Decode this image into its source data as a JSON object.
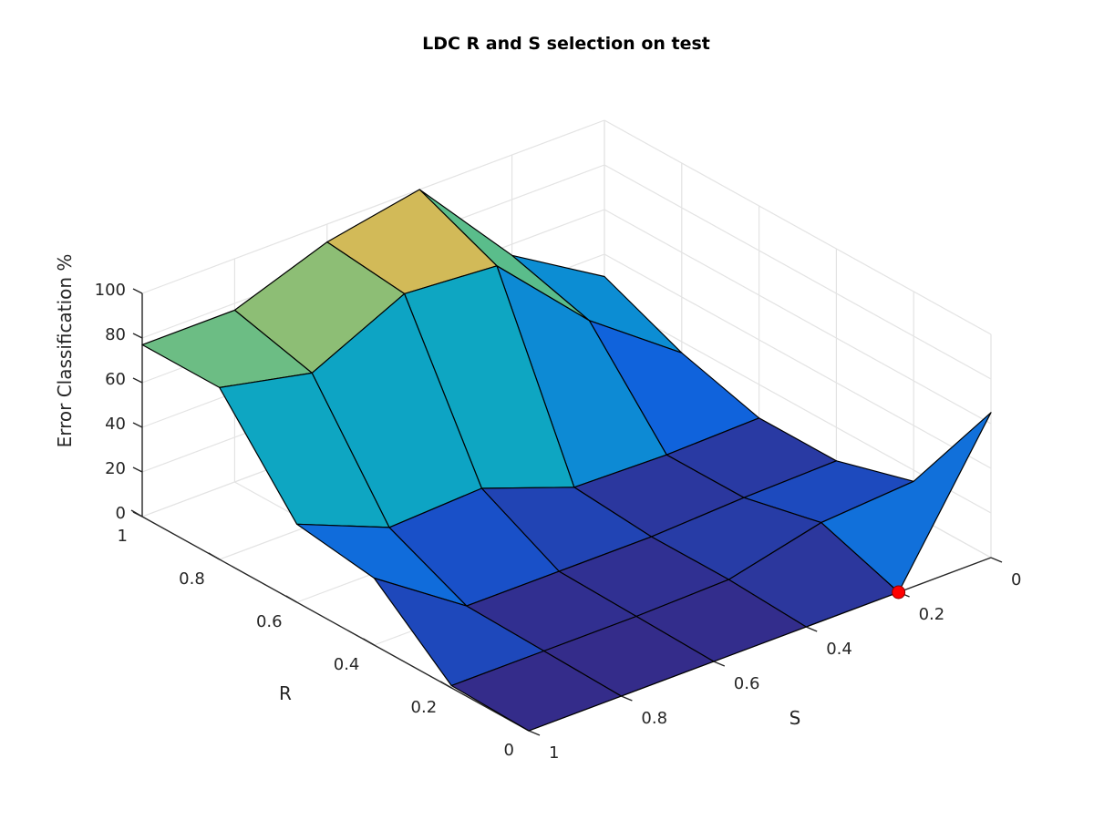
{
  "chart_data": {
    "type": "surface",
    "title": "LDC R and S selection on test",
    "xlabel": "S",
    "ylabel": "R",
    "zlabel": "Error Classification %",
    "x_ticks": [
      "0",
      "0.2",
      "0.4",
      "0.6",
      "0.8",
      "1"
    ],
    "y_ticks": [
      "0",
      "0.2",
      "0.4",
      "0.6",
      "0.8",
      "1"
    ],
    "z_ticks": [
      "0",
      "20",
      "40",
      "60",
      "80",
      "100"
    ],
    "xlim": [
      0,
      1
    ],
    "ylim": [
      0,
      1
    ],
    "zlim": [
      0,
      100
    ],
    "grid": true,
    "s_values": [
      0,
      0.2,
      0.4,
      0.6,
      0.8,
      1
    ],
    "r_values": [
      0,
      0.2,
      0.4,
      0.6,
      0.8,
      1
    ],
    "z_note": "rows indexed by R from 0 to 1, columns by S from 0 to 1",
    "z": [
      [
        65,
        0,
        0,
        0,
        0,
        0
      ],
      [
        15,
        12,
        2,
        1,
        1,
        1
      ],
      [
        5,
        4,
        2,
        2,
        2,
        30
      ],
      [
        5,
        4,
        5,
        20,
        18,
        35
      ],
      [
        15,
        45,
        85,
        88,
        68,
        77
      ],
      [
        30,
        55,
        100,
        92,
        77,
        77
      ]
    ],
    "highlight_point": {
      "s": 0.2,
      "r": 0,
      "z": 0,
      "color": "#ff0000"
    },
    "colormap": "parula"
  }
}
